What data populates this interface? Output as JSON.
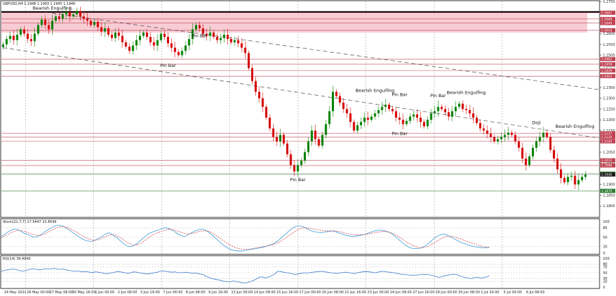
{
  "header": {
    "main": "GBPUSD,H4  1.1948  1.1963  1.1945  1.1946",
    "stoch": "Stoch(21,7,7) 17.5447 15.8549",
    "rsi": "RSI(14) 39.4940"
  },
  "colors": {
    "bull": "#008000",
    "bear": "#d40000",
    "resistance_zone": "#f7c6d0",
    "resistance_line": "#c04050",
    "support_line": "#2e7d32",
    "stoch_main": "#3a9bd9",
    "stoch_signal": "#d04040",
    "rsi": "#3a78c8",
    "price_badge": "#1a1a1a"
  },
  "chart_data": {
    "type": "candlestick",
    "title": "",
    "ylim": [
      1.175,
      1.275
    ],
    "y_ticks": [
      "1.2750",
      "1.2700",
      "1.2650",
      "1.2600",
      "1.2550",
      "1.2500",
      "1.2450",
      "1.2400",
      "1.2350",
      "1.2300",
      "1.2250",
      "1.2200",
      "1.2150",
      "1.2100",
      "1.2050",
      "1.2000",
      "1.1950",
      "1.1900",
      "1.1850",
      "1.1800"
    ],
    "x_ticks": [
      "24 May 2022",
      "26 May 00:00",
      "27 May 08:00",
      "30 May 16:00",
      "1 Jun 00:00",
      "2 Jun 08:00",
      "3 Jun 16:00",
      "7 Jun 00:00",
      "8 Jun 08:00",
      "9 Jun 16:00",
      "13 Jun 00:00",
      "14 Jun 08:00",
      "15 Jun 16:00",
      "17 Jun 00:00",
      "20 Jun 08:00",
      "21 Jun 16:00",
      "23 Jun 00:00",
      "24 Jun 08:00",
      "27 Jun 16:00",
      "29 Jun 00:00",
      "30 Jun 08:00",
      "1 Jul 16:00",
      "5 Jul 00:00",
      "6 Jul 08:00"
    ],
    "closes": [
      1.255,
      1.2575,
      1.259,
      1.257,
      1.2595,
      1.262,
      1.26,
      1.2575,
      1.2565,
      1.26,
      1.264,
      1.2665,
      1.264,
      1.262,
      1.266,
      1.268,
      1.267,
      1.269,
      1.27,
      1.268,
      1.269,
      1.2705,
      1.268,
      1.267,
      1.266,
      1.264,
      1.2655,
      1.263,
      1.261,
      1.2625,
      1.2595,
      1.258,
      1.2605,
      1.259,
      1.256,
      1.254,
      1.252,
      1.2545,
      1.257,
      1.259,
      1.2605,
      1.2585,
      1.256,
      1.2545,
      1.257,
      1.26,
      1.2585,
      1.2555,
      1.2535,
      1.2515,
      1.25,
      1.252,
      1.2545,
      1.2575,
      1.262,
      1.264,
      1.2625,
      1.26,
      1.259,
      1.2605,
      1.2585,
      1.257,
      1.258,
      1.2595,
      1.2575,
      1.256,
      1.257,
      1.2555,
      1.2535,
      1.251,
      1.244,
      1.238,
      1.233,
      1.23,
      1.226,
      1.221,
      1.216,
      1.212,
      1.21,
      1.213,
      1.209,
      1.204,
      1.199,
      1.196,
      1.199,
      1.201,
      1.205,
      1.21,
      1.215,
      1.211,
      1.208,
      1.213,
      1.218,
      1.224,
      1.233,
      1.231,
      1.228,
      1.225,
      1.223,
      1.219,
      1.215,
      1.2175,
      1.219,
      1.221,
      1.22,
      1.2215,
      1.223,
      1.2245,
      1.226,
      1.227,
      1.225,
      1.224,
      1.221,
      1.22,
      1.218,
      1.2195,
      1.2215,
      1.2225,
      1.221,
      1.219,
      1.217,
      1.22,
      1.223,
      1.224,
      1.226,
      1.225,
      1.2235,
      1.2215,
      1.224,
      1.226,
      1.2275,
      1.225,
      1.2245,
      1.223,
      1.221,
      1.2185,
      1.216,
      1.215,
      1.2135,
      1.212,
      1.21,
      1.211,
      1.212,
      1.213,
      1.214,
      1.213,
      1.21,
      1.207,
      1.202,
      1.199,
      1.203,
      1.207,
      1.21,
      1.212,
      1.214,
      1.212,
      1.206,
      1.202,
      1.197,
      1.193,
      1.191,
      1.1935,
      1.194,
      1.19,
      1.192,
      1.1935,
      1.1946
    ],
    "annotations": [
      {
        "label": "Bearish Engulfing",
        "bar": 14,
        "price": 1.2712
      },
      {
        "label": "Pin Bar",
        "bar": 56,
        "price": 1.2583
      },
      {
        "label": "Pin Bar",
        "bar": 47,
        "price": 1.2445
      },
      {
        "label": "Bearish Engulfing",
        "bar": 106,
        "price": 1.233
      },
      {
        "label": "Pin Bar",
        "bar": 113,
        "price": 1.231
      },
      {
        "label": "Pin Bar",
        "bar": 124,
        "price": 1.2305
      },
      {
        "label": "Bearish Engulfing",
        "bar": 132,
        "price": 1.232
      },
      {
        "label": "Pin Bar",
        "bar": 113,
        "price": 1.213
      },
      {
        "label": "Pin Bar",
        "bar": 84,
        "price": 1.1915
      },
      {
        "label": "Doji",
        "bar": 152,
        "price": 1.218
      },
      {
        "label": "Bearish Engulfing",
        "bar": 163,
        "price": 1.2163
      }
    ],
    "resistance_zone": {
      "from": 1.2605,
      "to": 1.2695
    },
    "horizontal_levels": [
      {
        "price": 1.2697,
        "label": "1.2697",
        "kind": "resistance"
      },
      {
        "price": 1.2668,
        "label": "1.2668",
        "kind": "resistance"
      },
      {
        "price": 1.2649,
        "label": "1.2649",
        "kind": "resistance"
      },
      {
        "price": 1.2616,
        "label": "1.2616",
        "kind": "resistance"
      },
      {
        "price": 1.2482,
        "label": "1.2482",
        "kind": "resistance"
      },
      {
        "price": 1.2458,
        "label": "1.2458",
        "kind": "resistance"
      },
      {
        "price": 1.2429,
        "label": "1.2429",
        "kind": "resistance"
      },
      {
        "price": 1.2403,
        "label": "1.2403",
        "kind": "resistance"
      },
      {
        "price": 1.2137,
        "label": "1.2137",
        "kind": "resistance"
      },
      {
        "price": 1.212,
        "label": "1.2120",
        "kind": "resistance"
      },
      {
        "price": 1.21,
        "label": "1.2100",
        "kind": "resistance"
      },
      {
        "price": 1.2012,
        "label": "1.2012",
        "kind": "resistance"
      },
      {
        "price": 1.1988,
        "label": "1.1988",
        "kind": "resistance"
      },
      {
        "price": 1.195,
        "label": "1.1950",
        "kind": "support"
      },
      {
        "price": 1.187,
        "label": "1.1870",
        "kind": "support"
      }
    ],
    "current_price": {
      "price": 1.1946,
      "label": "1.1946"
    },
    "trendlines": [
      {
        "from": {
          "bar": 12,
          "price": 1.27
        },
        "to": {
          "bar": 172,
          "price": 1.234
        }
      },
      {
        "from": {
          "bar": 0,
          "price": 1.2535
        },
        "to": {
          "bar": 172,
          "price": 1.2115
        }
      }
    ],
    "stochastic": {
      "ylim": [
        0,
        100
      ],
      "ticks": [
        "100",
        "80",
        "50",
        "20",
        "0"
      ],
      "main": [
        52,
        60,
        68,
        74,
        76,
        72,
        65,
        60,
        55,
        50,
        52,
        58,
        66,
        74,
        80,
        86,
        88,
        86,
        80,
        72,
        64,
        56,
        48,
        42,
        38,
        36,
        40,
        46,
        52,
        60,
        64,
        58,
        50,
        40,
        30,
        22,
        20,
        24,
        32,
        42,
        52,
        60,
        66,
        70,
        74,
        78,
        80,
        76,
        70,
        62,
        56,
        52,
        58,
        64,
        70,
        74,
        76,
        72,
        64,
        54,
        44,
        34,
        24,
        16,
        10,
        8,
        6,
        6,
        8,
        10,
        12,
        14,
        16,
        18,
        22,
        26,
        30,
        38,
        48,
        58,
        68,
        78,
        84,
        86,
        84,
        78,
        72,
        68,
        66,
        64,
        66,
        68,
        70,
        68,
        64,
        60,
        56,
        54,
        52,
        54,
        56,
        58,
        62,
        66,
        70,
        72,
        72,
        70,
        66,
        60,
        50,
        40,
        30,
        22,
        16,
        14,
        14,
        16,
        22,
        30,
        40,
        50,
        56,
        60,
        58,
        52,
        46,
        40,
        34,
        30,
        26,
        22,
        20,
        18,
        16,
        17,
        18
      ],
      "signal": [
        48,
        54,
        60,
        66,
        70,
        72,
        70,
        66,
        62,
        58,
        56,
        56,
        60,
        66,
        72,
        78,
        82,
        84,
        82,
        78,
        72,
        66,
        58,
        52,
        46,
        42,
        40,
        42,
        46,
        52,
        56,
        58,
        56,
        50,
        42,
        34,
        28,
        24,
        26,
        32,
        40,
        48,
        56,
        62,
        66,
        70,
        74,
        76,
        74,
        70,
        66,
        62,
        60,
        62,
        64,
        68,
        70,
        70,
        68,
        62,
        54,
        46,
        38,
        30,
        24,
        18,
        14,
        12,
        12,
        12,
        14,
        16,
        18,
        20,
        22,
        24,
        28,
        32,
        38,
        46,
        54,
        62,
        70,
        76,
        80,
        80,
        78,
        76,
        74,
        72,
        70,
        70,
        70,
        70,
        68,
        66,
        62,
        60,
        58,
        58,
        58,
        58,
        60,
        62,
        64,
        66,
        68,
        68,
        66,
        62,
        56,
        50,
        42,
        34,
        28,
        22,
        18,
        16,
        18,
        22,
        28,
        34,
        42,
        48,
        52,
        54,
        52,
        48,
        44,
        40,
        36,
        32,
        28,
        24,
        21,
        19,
        16
      ]
    },
    "rsi": {
      "ylim": [
        0,
        100
      ],
      "ticks": [
        "100",
        "80",
        "70",
        "50",
        "30",
        "20",
        "0"
      ],
      "values": [
        55,
        58,
        60,
        62,
        63,
        61,
        58,
        56,
        57,
        60,
        63,
        64,
        62,
        60,
        62,
        64,
        63,
        64,
        65,
        63,
        62,
        63,
        60,
        58,
        57,
        55,
        56,
        54,
        53,
        54,
        52,
        51,
        53,
        52,
        50,
        48,
        47,
        49,
        51,
        53,
        54,
        52,
        50,
        48,
        50,
        53,
        52,
        50,
        48,
        47,
        46,
        48,
        50,
        52,
        55,
        56,
        55,
        53,
        52,
        53,
        51,
        50,
        51,
        52,
        50,
        48,
        49,
        47,
        45,
        42,
        36,
        32,
        29,
        27,
        25,
        22,
        20,
        19,
        18,
        22,
        19,
        17,
        15,
        14,
        17,
        20,
        24,
        30,
        36,
        34,
        32,
        36,
        40,
        46,
        55,
        54,
        52,
        50,
        49,
        46,
        44,
        46,
        48,
        50,
        49,
        51,
        52,
        53,
        54,
        55,
        53,
        52,
        50,
        49,
        48,
        49,
        51,
        52,
        51,
        49,
        47,
        50,
        52,
        53,
        54,
        53,
        52,
        50,
        52,
        54,
        55,
        53,
        52,
        51,
        49,
        47,
        45,
        44,
        43,
        42,
        41,
        42,
        43,
        44,
        45,
        44,
        42,
        40,
        36,
        34,
        37,
        40,
        42,
        44,
        45,
        43,
        39,
        36,
        33,
        31,
        30,
        33,
        34,
        31,
        33,
        35,
        39
      ]
    }
  }
}
